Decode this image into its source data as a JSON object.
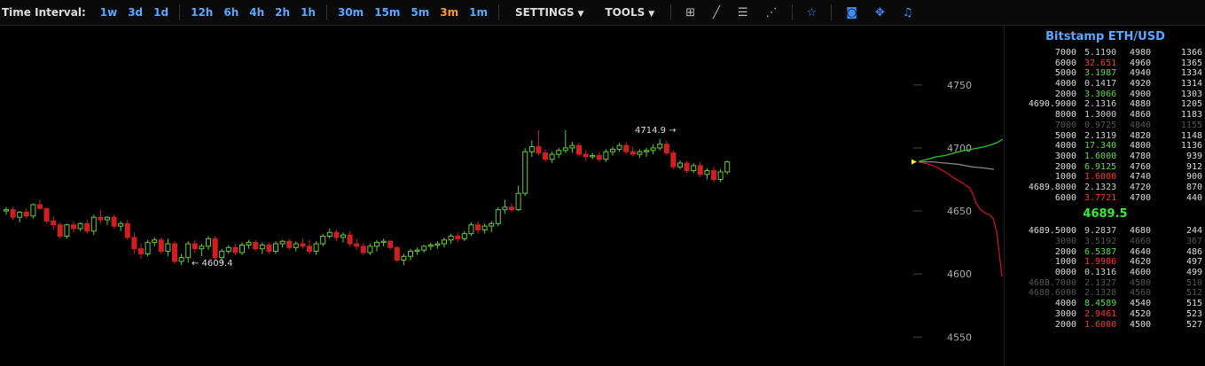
{
  "toolbar": {
    "label": "Time Interval:",
    "intervals": [
      "1w",
      "3d",
      "1d",
      "12h",
      "6h",
      "4h",
      "2h",
      "1h",
      "30m",
      "15m",
      "5m",
      "3m",
      "1m"
    ],
    "active_interval": "3m",
    "settings": "SETTINGS",
    "tools": "TOOLS",
    "icons": [
      "crosshair-icon",
      "line-icon",
      "horizontal-lines-icon",
      "fan-icon",
      "star-icon",
      "camera-icon",
      "fullscreen-icon",
      "bell-icon"
    ]
  },
  "colors": {
    "up": "#66cc33",
    "down": "#d21e1e",
    "bid_line": "#22cc22",
    "ask_line": "#cc1111",
    "accent": "#5aa8ff"
  },
  "chart_data": {
    "type": "candlestick",
    "y_ticks": [
      4750,
      4700,
      4650,
      4600,
      4550
    ],
    "ylim": [
      4527,
      4797
    ],
    "annotations": [
      {
        "text": "4714.9 →",
        "value": 4714.9
      },
      {
        "text": "← 4609.4",
        "value": 4609.4
      }
    ],
    "candles": [
      [
        4650,
        4653,
        4647,
        4651
      ],
      [
        4651,
        4653,
        4643,
        4645
      ],
      [
        4645,
        4650,
        4641,
        4649
      ],
      [
        4649,
        4652,
        4644,
        4646
      ],
      [
        4646,
        4656,
        4644,
        4655
      ],
      [
        4655,
        4659,
        4651,
        4652
      ],
      [
        4652,
        4652,
        4640,
        4642
      ],
      [
        4642,
        4646,
        4635,
        4639
      ],
      [
        4639,
        4641,
        4628,
        4630
      ],
      [
        4630,
        4640,
        4628,
        4639
      ],
      [
        4639,
        4642,
        4633,
        4636
      ],
      [
        4636,
        4641,
        4634,
        4640
      ],
      [
        4640,
        4643,
        4632,
        4634
      ],
      [
        4634,
        4647,
        4631,
        4645
      ],
      [
        4645,
        4651,
        4640,
        4643
      ],
      [
        4643,
        4646,
        4639,
        4645
      ],
      [
        4645,
        4647,
        4636,
        4638
      ],
      [
        4638,
        4642,
        4634,
        4640
      ],
      [
        4640,
        4643,
        4627,
        4629
      ],
      [
        4629,
        4633,
        4616,
        4620
      ],
      [
        4620,
        4624,
        4612,
        4616
      ],
      [
        4616,
        4627,
        4614,
        4625
      ],
      [
        4625,
        4629,
        4622,
        4627
      ],
      [
        4627,
        4629,
        4616,
        4618
      ],
      [
        4618,
        4628,
        4614,
        4624
      ],
      [
        4624,
        4626,
        4608,
        4610
      ],
      [
        4610,
        4616,
        4607,
        4613
      ],
      [
        4613,
        4626,
        4609,
        4624
      ],
      [
        4624,
        4627,
        4617,
        4620
      ],
      [
        4620,
        4624,
        4614,
        4622
      ],
      [
        4622,
        4630,
        4619,
        4628
      ],
      [
        4628,
        4630,
        4611,
        4613
      ],
      [
        4613,
        4620,
        4609,
        4618
      ],
      [
        4618,
        4623,
        4616,
        4621
      ],
      [
        4621,
        4624,
        4615,
        4617
      ],
      [
        4617,
        4625,
        4615,
        4623
      ],
      [
        4623,
        4627,
        4620,
        4625
      ],
      [
        4625,
        4627,
        4618,
        4620
      ],
      [
        4620,
        4625,
        4616,
        4623
      ],
      [
        4623,
        4625,
        4616,
        4618
      ],
      [
        4618,
        4626,
        4616,
        4624
      ],
      [
        4624,
        4627,
        4621,
        4626
      ],
      [
        4626,
        4628,
        4619,
        4621
      ],
      [
        4621,
        4626,
        4618,
        4624
      ],
      [
        4624,
        4628,
        4620,
        4622
      ],
      [
        4622,
        4627,
        4616,
        4618
      ],
      [
        4618,
        4626,
        4615,
        4624
      ],
      [
        4624,
        4632,
        4622,
        4630
      ],
      [
        4630,
        4636,
        4628,
        4633
      ],
      [
        4633,
        4635,
        4626,
        4629
      ],
      [
        4629,
        4633,
        4625,
        4631
      ],
      [
        4631,
        4634,
        4622,
        4624
      ],
      [
        4624,
        4628,
        4619,
        4622
      ],
      [
        4622,
        4625,
        4615,
        4617
      ],
      [
        4617,
        4624,
        4615,
        4622
      ],
      [
        4622,
        4627,
        4618,
        4625
      ],
      [
        4625,
        4628,
        4622,
        4626
      ],
      [
        4626,
        4627,
        4619,
        4621
      ],
      [
        4621,
        4622,
        4609,
        4611
      ],
      [
        4611,
        4616,
        4607,
        4614
      ],
      [
        4614,
        4620,
        4611,
        4618
      ],
      [
        4618,
        4621,
        4615,
        4619
      ],
      [
        4619,
        4623,
        4617,
        4622
      ],
      [
        4622,
        4625,
        4619,
        4623
      ],
      [
        4623,
        4626,
        4620,
        4624
      ],
      [
        4624,
        4629,
        4621,
        4627
      ],
      [
        4627,
        4632,
        4624,
        4630
      ],
      [
        4630,
        4633,
        4625,
        4628
      ],
      [
        4628,
        4634,
        4626,
        4632
      ],
      [
        4632,
        4641,
        4630,
        4639
      ],
      [
        4639,
        4642,
        4632,
        4635
      ],
      [
        4635,
        4640,
        4632,
        4638
      ],
      [
        4638,
        4642,
        4633,
        4640
      ],
      [
        4640,
        4653,
        4638,
        4651
      ],
      [
        4651,
        4659,
        4648,
        4653
      ],
      [
        4653,
        4656,
        4649,
        4651
      ],
      [
        4651,
        4670,
        4650,
        4664
      ],
      [
        4664,
        4700,
        4662,
        4697
      ],
      [
        4697,
        4706,
        4693,
        4701
      ],
      [
        4701,
        4714,
        4694,
        4696
      ],
      [
        4696,
        4699,
        4689,
        4691
      ],
      [
        4691,
        4697,
        4688,
        4695
      ],
      [
        4695,
        4700,
        4692,
        4698
      ],
      [
        4698,
        4714,
        4696,
        4700
      ],
      [
        4700,
        4705,
        4696,
        4702
      ],
      [
        4702,
        4704,
        4693,
        4695
      ],
      [
        4695,
        4698,
        4690,
        4693
      ],
      [
        4693,
        4696,
        4691,
        4694
      ],
      [
        4694,
        4697,
        4689,
        4691
      ],
      [
        4691,
        4699,
        4689,
        4697
      ],
      [
        4697,
        4701,
        4694,
        4699
      ],
      [
        4699,
        4704,
        4697,
        4702
      ],
      [
        4702,
        4705,
        4695,
        4697
      ],
      [
        4697,
        4701,
        4693,
        4695
      ],
      [
        4695,
        4699,
        4692,
        4697
      ],
      [
        4697,
        4700,
        4693,
        4698
      ],
      [
        4698,
        4703,
        4695,
        4700
      ],
      [
        4700,
        4707,
        4698,
        4703
      ],
      [
        4703,
        4706,
        4694,
        4696
      ],
      [
        4696,
        4698,
        4683,
        4685
      ],
      [
        4685,
        4690,
        4683,
        4688
      ],
      [
        4688,
        4690,
        4680,
        4682
      ],
      [
        4682,
        4688,
        4680,
        4686
      ],
      [
        4686,
        4689,
        4677,
        4679
      ],
      [
        4679,
        4684,
        4675,
        4682
      ],
      [
        4682,
        4685,
        4673,
        4675
      ],
      [
        4675,
        4683,
        4673,
        4681
      ],
      [
        4681,
        4690,
        4679,
        4689
      ]
    ],
    "depth": {
      "bid": [
        [
          0,
          4689
        ],
        [
          4,
          4690
        ],
        [
          10,
          4691
        ],
        [
          20,
          4693
        ],
        [
          30,
          4694
        ],
        [
          45,
          4697
        ],
        [
          60,
          4699
        ],
        [
          75,
          4701
        ],
        [
          88,
          4704
        ],
        [
          95,
          4707
        ]
      ],
      "ask": [
        [
          0,
          4689
        ],
        [
          6,
          4688
        ],
        [
          12,
          4687
        ],
        [
          20,
          4685
        ],
        [
          30,
          4681
        ],
        [
          40,
          4676
        ],
        [
          50,
          4672
        ],
        [
          58,
          4668
        ],
        [
          62,
          4662
        ],
        [
          65,
          4656
        ],
        [
          70,
          4651
        ],
        [
          76,
          4648
        ],
        [
          80,
          4647
        ],
        [
          84,
          4644
        ],
        [
          88,
          4634
        ],
        [
          90,
          4622
        ],
        [
          92,
          4610
        ],
        [
          94,
          4598
        ]
      ],
      "mid": [
        [
          0,
          4689
        ],
        [
          15,
          4689
        ],
        [
          30,
          4688
        ],
        [
          45,
          4687
        ],
        [
          60,
          4685
        ],
        [
          75,
          4684
        ],
        [
          85,
          4683
        ]
      ]
    }
  },
  "orderbook": {
    "title": "Bitstamp ETH/USD",
    "last_price": "4689.5",
    "asks": [
      {
        "c1": "7000",
        "c2": "5.1190",
        "c2c": "#ccc",
        "c3": "4980",
        "c4": "1366"
      },
      {
        "c1": "6000",
        "c2": "32.651",
        "c2c": "#ff3333",
        "c3": "4960",
        "c4": "1365"
      },
      {
        "c1": "5000",
        "c2": "3.1987",
        "c2c": "#55dd44",
        "c3": "4940",
        "c4": "1334"
      },
      {
        "c1": "4000",
        "c2": "0.1417",
        "c2c": "#ccc",
        "c3": "4920",
        "c4": "1314"
      },
      {
        "c1": "2000",
        "c2": "3.3066",
        "c2c": "#55dd44",
        "c3": "4900",
        "c4": "1303"
      },
      {
        "c1": "4690.9000",
        "c2": "2.1316",
        "c2c": "#ccc",
        "c3": "4880",
        "c4": "1205"
      },
      {
        "c1": "8000",
        "c2": "1.3000",
        "c2c": "#ccc",
        "c3": "4860",
        "c4": "1183"
      },
      {
        "c1": "7000",
        "c2": "0.9725",
        "c2c": "#555",
        "c3": "4840",
        "c4": "1155",
        "dim": true
      },
      {
        "c1": "5000",
        "c2": "2.1319",
        "c2c": "#ccc",
        "c3": "4820",
        "c4": "1148"
      },
      {
        "c1": "4000",
        "c2": "17.340",
        "c2c": "#55dd44",
        "c3": "4800",
        "c4": "1136"
      },
      {
        "c1": "3000",
        "c2": "1.6000",
        "c2c": "#55dd44",
        "c3": "4780",
        "c4": "939"
      },
      {
        "c1": "2000",
        "c2": "6.9125",
        "c2c": "#55dd44",
        "c3": "4760",
        "c4": "912"
      },
      {
        "c1": "1000",
        "c2": "1.6000",
        "c2c": "#ff3333",
        "c3": "4740",
        "c4": "900"
      },
      {
        "c1": "4689.8000",
        "c2": "2.1323",
        "c2c": "#ccc",
        "c3": "4720",
        "c4": "870"
      },
      {
        "c1": "6000",
        "c2": "3.7721",
        "c2c": "#ff3333",
        "c3": "4700",
        "c4": "440"
      }
    ],
    "bids": [
      {
        "c1": "4689.5000",
        "c2": "9.2837",
        "c2c": "#ccc",
        "c3": "4680",
        "c4": "244"
      },
      {
        "c1": "3000",
        "c2": "3.5192",
        "c2c": "#555",
        "c3": "4660",
        "c4": "367",
        "dim": true
      },
      {
        "c1": "2000",
        "c2": "6.5387",
        "c2c": "#55dd44",
        "c3": "4640",
        "c4": "486"
      },
      {
        "c1": "1000",
        "c2": "1.9906",
        "c2c": "#ff3333",
        "c3": "4620",
        "c4": "497"
      },
      {
        "c1": "0000",
        "c2": "0.1316",
        "c2c": "#ccc",
        "c3": "4600",
        "c4": "499"
      },
      {
        "c1": "4688.7000",
        "c2": "2.1327",
        "c2c": "#555",
        "c3": "4580",
        "c4": "510",
        "dim": true
      },
      {
        "c1": "4688.6000",
        "c2": "2.1328",
        "c2c": "#555",
        "c3": "4560",
        "c4": "512",
        "dim": true
      },
      {
        "c1": "4000",
        "c2": "8.4589",
        "c2c": "#55dd44",
        "c3": "4540",
        "c4": "515"
      },
      {
        "c1": "3000",
        "c2": "2.9461",
        "c2c": "#ff3333",
        "c3": "4520",
        "c4": "523"
      },
      {
        "c1": "2000",
        "c2": "1.6000",
        "c2c": "#ff3333",
        "c3": "4500",
        "c4": "527"
      }
    ]
  }
}
